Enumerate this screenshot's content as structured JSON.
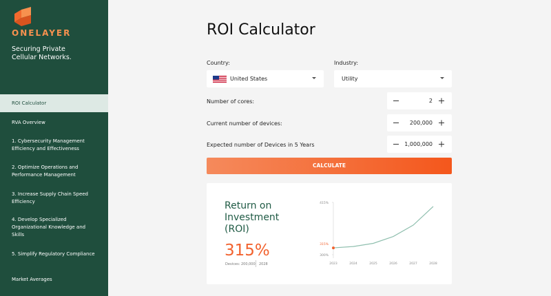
{
  "sidebar": {
    "brand": "ONELAYER",
    "tagline": "Securing Private Cellular Networks.",
    "nav": [
      "ROI Calculator",
      "RVA Overview",
      "1.  Cybersecurity Management Efficiency and Effectiveness",
      "2.  Optimize Operations and Performance Management",
      "3.  Increase Supply Chain Speed Efficiency",
      "4.  Develop Specialized Organizational Knowledge and Skills",
      "5.  Simplify Regulatory Compliance",
      "Market Averages"
    ]
  },
  "main": {
    "title": "ROI Calculator",
    "country": {
      "label": "Country:",
      "value": "United States"
    },
    "industry": {
      "label": "Industry:",
      "value": "Utility"
    },
    "fields": [
      {
        "label": "Number of cores:",
        "value": "2"
      },
      {
        "label": "Current number of devices:",
        "value": "200,000"
      },
      {
        "label": "Expected number of Devices in 5 Years",
        "value": "1,000,000"
      }
    ],
    "button": "CALCULATE",
    "result": {
      "heading": "Return on Investment (ROI)",
      "value": "315%",
      "devices": "Devices: 200,000",
      "year": "2028"
    }
  },
  "chart_data": {
    "type": "line",
    "categories": [
      "2023",
      "2024",
      "2025",
      "2026",
      "2027",
      "2028"
    ],
    "series": [
      {
        "name": "ROI",
        "color": "#8fbfae",
        "values": [
          315,
          318,
          325,
          340,
          365,
          406
        ],
        "value_labels": [
          "315%",
          null,
          null,
          null,
          null,
          null
        ]
      }
    ],
    "ylim": [
      300,
      415
    ],
    "yticks": [
      {
        "value": 300,
        "label": "300%"
      },
      {
        "value": 415,
        "label": "415%"
      }
    ]
  }
}
